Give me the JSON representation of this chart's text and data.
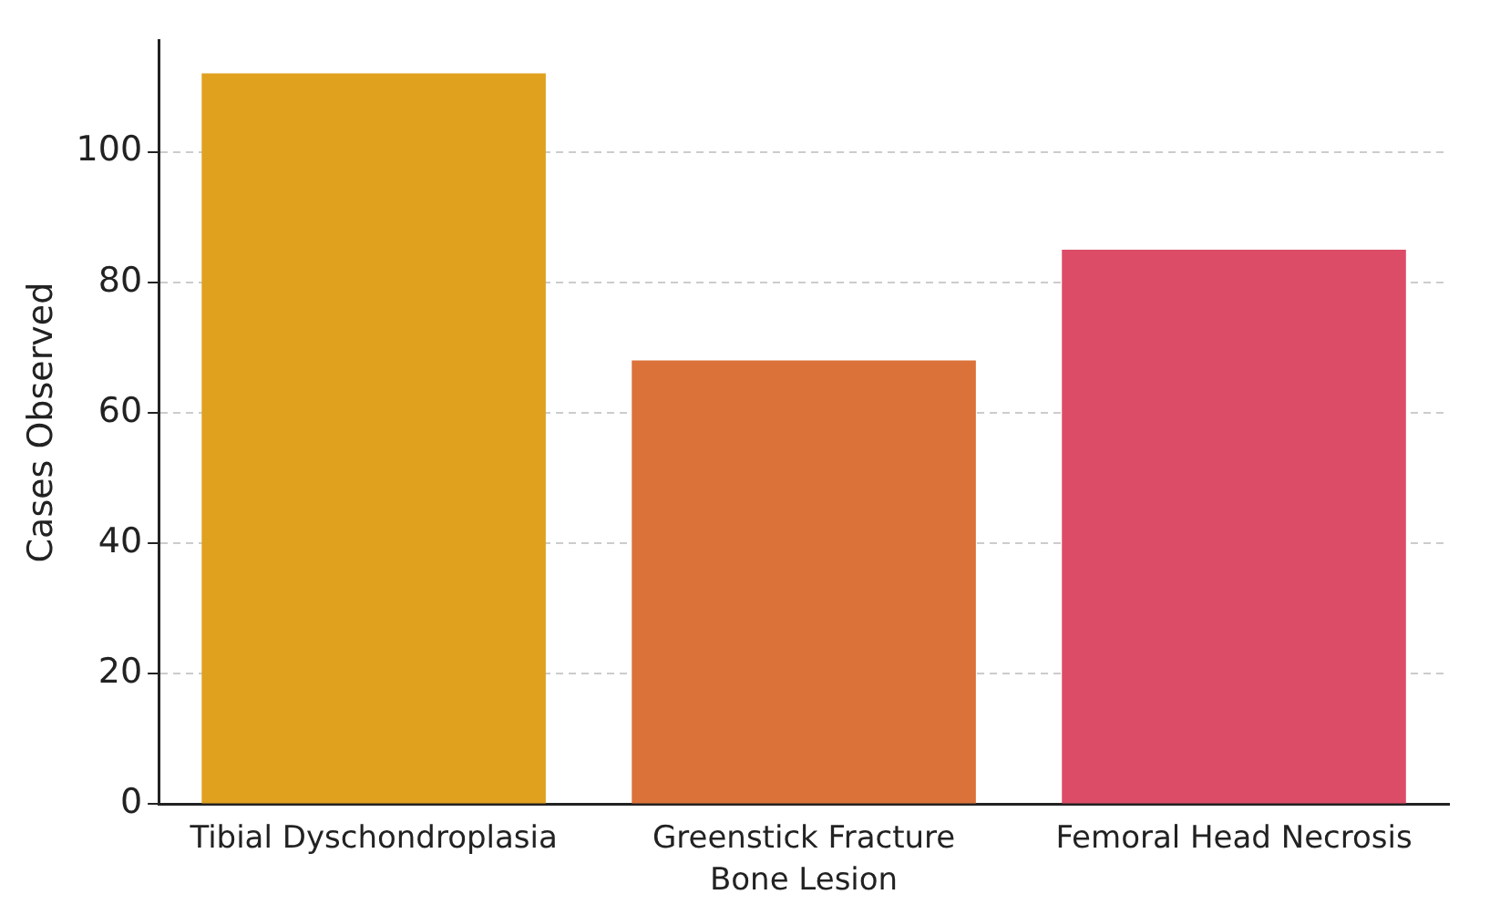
{
  "chart_data": {
    "type": "bar",
    "xlabel": "Bone Lesion",
    "ylabel": "Cases Observed",
    "categories": [
      "Tibial Dyschondroplasia",
      "Greenstick Fracture",
      "Femoral Head Necrosis"
    ],
    "values": [
      112,
      68,
      85
    ],
    "colors": [
      "#e0a11f",
      "#db723a",
      "#dc4c67"
    ],
    "ylim": [
      0,
      117
    ],
    "yticks": [
      0,
      20,
      40,
      60,
      80,
      100
    ],
    "grid": "y",
    "line_style": "dashed",
    "legend": false
  }
}
